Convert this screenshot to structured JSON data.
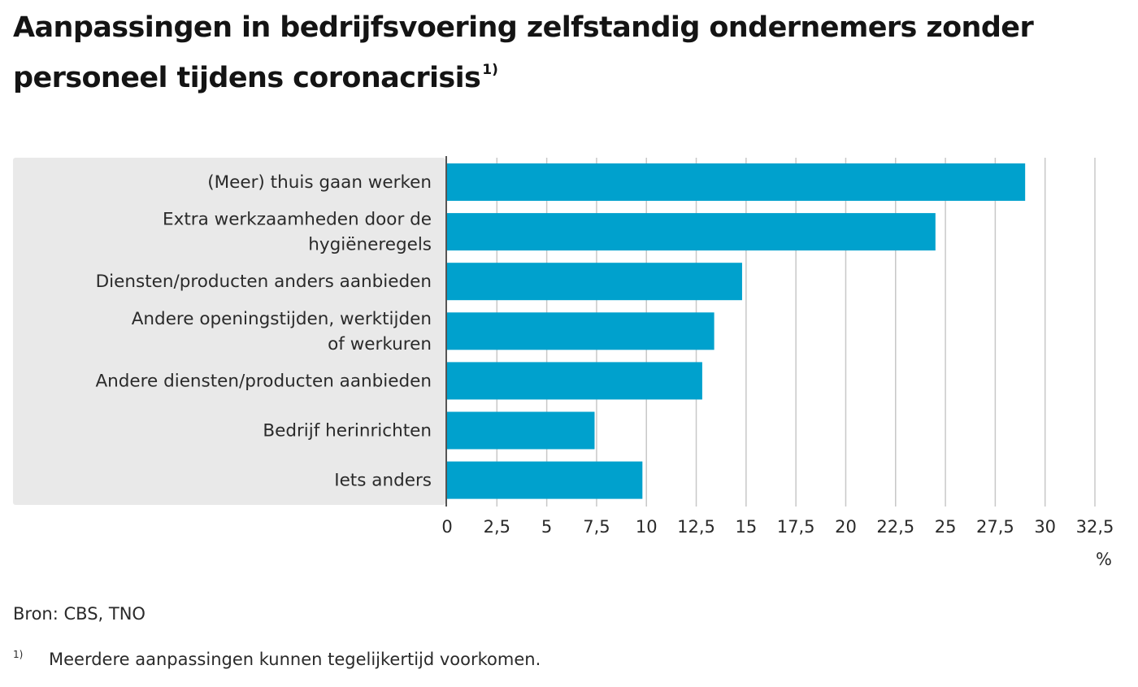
{
  "title": "Aanpassingen in bedrijfsvoering zelfstandig ondernemers zonder personeel tijdens coronacrisis",
  "title_footnote_mark": "1)",
  "source": "Bron: CBS, TNO",
  "footnote": {
    "mark": "1)",
    "text": "Meerdere aanpassingen kunnen tegelijkertijd voorkomen."
  },
  "colors": {
    "bar": "#00a1cd",
    "label_band": "#e9e9e9",
    "grid": "#c8c8c8",
    "axis": "#555555"
  },
  "chart_data": {
    "type": "bar",
    "orientation": "horizontal",
    "categories": [
      [
        "(Meer) thuis gaan werken"
      ],
      [
        "Extra werkzaamheden door de",
        "hygiëneregels"
      ],
      [
        "Diensten/producten anders aanbieden"
      ],
      [
        "Andere openingstijden, werktijden",
        "of werkuren"
      ],
      [
        "Andere diensten/producten aanbieden"
      ],
      [
        "Bedrijf herinrichten"
      ],
      [
        "Iets anders"
      ]
    ],
    "values": [
      29.0,
      24.5,
      14.8,
      13.4,
      12.8,
      7.4,
      9.8
    ],
    "xlim": [
      0,
      32.5
    ],
    "xticks": [
      "0",
      "2,5",
      "5",
      "7,5",
      "10",
      "12,5",
      "15",
      "17,5",
      "20",
      "22,5",
      "25",
      "27,5",
      "30",
      "32,5"
    ],
    "xlabel": "%",
    "ylabel": "",
    "grid": true,
    "legend": "none"
  }
}
